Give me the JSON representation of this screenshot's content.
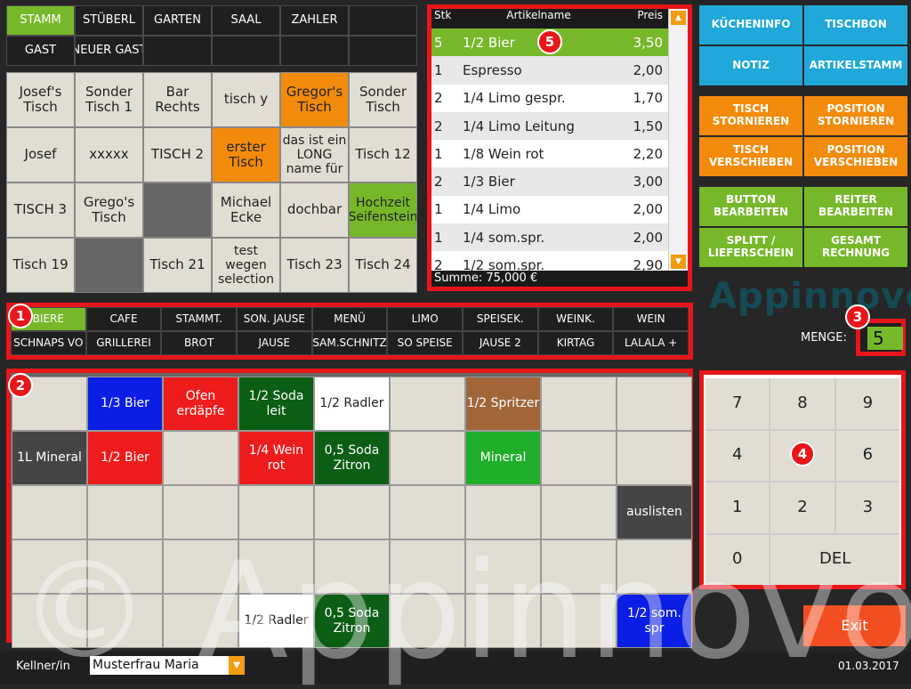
{
  "rooms": [
    "STAMM",
    "STÜBERL",
    "GARTEN",
    "SAAL",
    "ZAHLER",
    "",
    "GAST",
    "NEUER GAST",
    "",
    "",
    "",
    ""
  ],
  "rooms_active_index": 0,
  "tables": [
    {
      "label": "Josef's Tisch",
      "color": ""
    },
    {
      "label": "Sonder Tisch 1",
      "color": ""
    },
    {
      "label": "Bar Rechts",
      "color": ""
    },
    {
      "label": "tisch y",
      "color": ""
    },
    {
      "label": "Gregor's Tisch",
      "color": "#f28b0c"
    },
    {
      "label": "Sonder Tisch",
      "color": ""
    },
    {
      "label": "Josef",
      "color": ""
    },
    {
      "label": "xxxxx",
      "color": ""
    },
    {
      "label": "TISCH 2",
      "color": ""
    },
    {
      "label": "erster Tisch",
      "color": "#f28b0c"
    },
    {
      "label": "das ist ein LONG name für",
      "color": ""
    },
    {
      "label": "Tisch 12",
      "color": ""
    },
    {
      "label": "TISCH 3",
      "color": ""
    },
    {
      "label": "Grego's Tisch",
      "color": ""
    },
    {
      "label": "",
      "color": "#666666"
    },
    {
      "label": "Michael Ecke",
      "color": ""
    },
    {
      "label": "dochbar",
      "color": ""
    },
    {
      "label": "Hochzeit Seifenstein",
      "color": "#76b82a"
    },
    {
      "label": "Tisch 19",
      "color": ""
    },
    {
      "label": "",
      "color": "#666666"
    },
    {
      "label": "Tisch 21",
      "color": ""
    },
    {
      "label": "test wegen selection",
      "color": ""
    },
    {
      "label": "Tisch 23",
      "color": ""
    },
    {
      "label": "Tisch 24",
      "color": ""
    }
  ],
  "order": {
    "headers": {
      "qty": "Stk",
      "name": "Artikelname",
      "price": "Preis"
    },
    "rows": [
      {
        "qty": "5",
        "name": "1/2 Bier",
        "price": "3,50",
        "selected": true
      },
      {
        "qty": "1",
        "name": "Espresso",
        "price": "2,00"
      },
      {
        "qty": "2",
        "name": "1/4 Limo gespr.",
        "price": "1,70"
      },
      {
        "qty": "2",
        "name": "1/4 Limo Leitung",
        "price": "1,50"
      },
      {
        "qty": "1",
        "name": "1/8 Wein rot",
        "price": "2,20"
      },
      {
        "qty": "2",
        "name": "1/3 Bier",
        "price": "3,00"
      },
      {
        "qty": "1",
        "name": "1/4 Limo",
        "price": "2,00"
      },
      {
        "qty": "1",
        "name": "1/4 som.spr.",
        "price": "2,00"
      },
      {
        "qty": "2",
        "name": "1/2 som.spr.",
        "price": "2,90"
      }
    ],
    "sum": "Summe: 75,000 €"
  },
  "functions_blue": [
    "KÜCHENINFO",
    "TISCHBON",
    "NOTIZ",
    "ARTIKELSTAMM"
  ],
  "functions_orange": [
    "TISCH STORNIEREN",
    "POSITION STORNIEREN",
    "TISCH VERSCHIEBEN",
    "POSITION VERSCHIEBEN"
  ],
  "functions_green": [
    "BUTTON BEARBEITEN",
    "REITER BEARBEITEN",
    "SPLITT / LIEFERSCHEIN",
    "GESAMT RECHNUNG"
  ],
  "categories": [
    "BIERE",
    "CAFE",
    "STAMMT.",
    "SON. JAUSE",
    "MENÜ",
    "LIMO",
    "SPEISEK.",
    "WEINK.",
    "WEIN",
    "SCHNAPS VO",
    "GRILLEREI",
    "BROT",
    "JAUSE",
    "SAM.SCHNITZ",
    "SO SPEISE",
    "JAUSE 2",
    "KIRTAG",
    "LALALA +"
  ],
  "categories_active_index": 0,
  "articles": [
    {
      "label": "",
      "bg": "#e0ddd2",
      "fg": "#222"
    },
    {
      "label": "1/3 Bier",
      "bg": "#0a1ee6",
      "fg": "#fff"
    },
    {
      "label": "Ofen erdäpfe",
      "bg": "#ee1c1c",
      "fg": "#fff"
    },
    {
      "label": "1/2 Soda leit",
      "bg": "#0b5e14",
      "fg": "#fff"
    },
    {
      "label": "1/2 Radler",
      "bg": "#ffffff",
      "fg": "#222"
    },
    {
      "label": "",
      "bg": "#e0ddd2",
      "fg": "#222"
    },
    {
      "label": "1/2 Spritzer",
      "bg": "#a0663a",
      "fg": "#fff"
    },
    {
      "label": "",
      "bg": "#e0ddd2",
      "fg": "#222"
    },
    {
      "label": "",
      "bg": "#e0ddd2",
      "fg": "#222"
    },
    {
      "label": "1L Mineral",
      "bg": "#454545",
      "fg": "#fff"
    },
    {
      "label": "1/2 Bier",
      "bg": "#ee1c1c",
      "fg": "#fff"
    },
    {
      "label": "",
      "bg": "#e0ddd2",
      "fg": "#222"
    },
    {
      "label": "1/4 Wein rot",
      "bg": "#ee1c1c",
      "fg": "#fff"
    },
    {
      "label": "0,5 Soda Zitron",
      "bg": "#0b5e14",
      "fg": "#fff"
    },
    {
      "label": "",
      "bg": "#e0ddd2",
      "fg": "#222"
    },
    {
      "label": "Mineral",
      "bg": "#1fae2a",
      "fg": "#fff"
    },
    {
      "label": "",
      "bg": "#e0ddd2",
      "fg": "#222"
    },
    {
      "label": "",
      "bg": "#e0ddd2",
      "fg": "#222"
    },
    {
      "label": "",
      "bg": "#e0ddd2",
      "fg": "#222"
    },
    {
      "label": "",
      "bg": "#e0ddd2",
      "fg": "#222"
    },
    {
      "label": "",
      "bg": "#e0ddd2",
      "fg": "#222"
    },
    {
      "label": "",
      "bg": "#e0ddd2",
      "fg": "#222"
    },
    {
      "label": "",
      "bg": "#e0ddd2",
      "fg": "#222"
    },
    {
      "label": "",
      "bg": "#e0ddd2",
      "fg": "#222"
    },
    {
      "label": "",
      "bg": "#e0ddd2",
      "fg": "#222"
    },
    {
      "label": "",
      "bg": "#e0ddd2",
      "fg": "#222"
    },
    {
      "label": "auslisten",
      "bg": "#454545",
      "fg": "#fff"
    },
    {
      "label": "",
      "bg": "#e0ddd2",
      "fg": "#222"
    },
    {
      "label": "",
      "bg": "#e0ddd2",
      "fg": "#222"
    },
    {
      "label": "",
      "bg": "#e0ddd2",
      "fg": "#222"
    },
    {
      "label": "",
      "bg": "#e0ddd2",
      "fg": "#222"
    },
    {
      "label": "",
      "bg": "#e0ddd2",
      "fg": "#222"
    },
    {
      "label": "",
      "bg": "#e0ddd2",
      "fg": "#222"
    },
    {
      "label": "",
      "bg": "#e0ddd2",
      "fg": "#222"
    },
    {
      "label": "",
      "bg": "#e0ddd2",
      "fg": "#222"
    },
    {
      "label": "",
      "bg": "#e0ddd2",
      "fg": "#222"
    },
    {
      "label": "",
      "bg": "#e0ddd2",
      "fg": "#222"
    },
    {
      "label": "",
      "bg": "#e0ddd2",
      "fg": "#222"
    },
    {
      "label": "",
      "bg": "#e0ddd2",
      "fg": "#222"
    },
    {
      "label": "1/2 Radler",
      "bg": "#ffffff",
      "fg": "#222"
    },
    {
      "label": "0,5 Soda Zitron",
      "bg": "#0b5e14",
      "fg": "#fff"
    },
    {
      "label": "",
      "bg": "#e0ddd2",
      "fg": "#222"
    },
    {
      "label": "",
      "bg": "#e0ddd2",
      "fg": "#222"
    },
    {
      "label": "",
      "bg": "#e0ddd2",
      "fg": "#222"
    },
    {
      "label": "1/2 som. spr",
      "bg": "#0a1ee6",
      "fg": "#fff"
    }
  ],
  "keypad": [
    "7",
    "8",
    "9",
    "4",
    "",
    "6",
    "1",
    "2",
    "3",
    "0",
    "DEL"
  ],
  "menge": {
    "label": "MENGE:",
    "value": "5"
  },
  "logo": "Appinnovo",
  "watermark": "© Appinnovo",
  "exit_label": "Exit",
  "kellner": {
    "label": "Kellner/in",
    "value": "Musterfrau Maria"
  },
  "date": "01.03.2017",
  "badges": [
    "1",
    "2",
    "3",
    "4",
    "5"
  ],
  "colors": {
    "green": "#76b82a",
    "blue": "#1fa8d9",
    "orange": "#f28b0c",
    "red": "#e8161b"
  }
}
